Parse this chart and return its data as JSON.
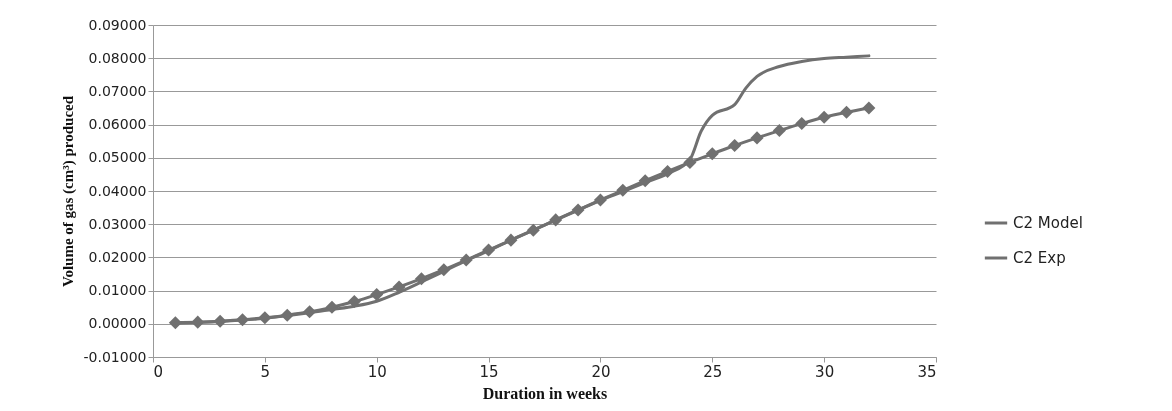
{
  "chart_data": {
    "type": "line",
    "xlabel": "Duration in weeks",
    "ylabel": "Volume of gas (cm³) produced",
    "xlim": [
      0,
      35
    ],
    "xticks": [
      0,
      5,
      10,
      15,
      20,
      25,
      30,
      35
    ],
    "ylim": [
      -0.01,
      0.09
    ],
    "yticks": [
      {
        "value": -0.01,
        "label": "-0.01000"
      },
      {
        "value": 0,
        "label": "0.00000"
      },
      {
        "value": 0.01,
        "label": "0.01000"
      },
      {
        "value": 0.02,
        "label": "0.02000"
      },
      {
        "value": 0.03,
        "label": "0.03000"
      },
      {
        "value": 0.04,
        "label": "0.04000"
      },
      {
        "value": 0.05,
        "label": "0.05000"
      },
      {
        "value": 0.06,
        "label": "0.06000"
      },
      {
        "value": 0.07,
        "label": "0.07000"
      },
      {
        "value": 0.08,
        "label": "0.08000"
      },
      {
        "value": 0.09,
        "label": "0.09000"
      }
    ],
    "grid": "y",
    "legend": "right",
    "series": [
      {
        "name": "C2 Model",
        "color": "#707070",
        "marker": "diamond",
        "x": [
          1,
          2,
          3,
          4,
          5,
          6,
          7,
          8,
          9,
          10,
          11,
          12,
          13,
          14,
          15,
          16,
          17,
          18,
          19,
          20,
          21,
          22,
          23,
          24,
          25,
          26,
          27,
          28,
          29,
          30,
          31,
          32
        ],
        "values": [
          0.0003,
          0.0005,
          0.0008,
          0.0012,
          0.0018,
          0.0026,
          0.0036,
          0.005,
          0.0067,
          0.0088,
          0.0111,
          0.0136,
          0.0163,
          0.0192,
          0.0222,
          0.0252,
          0.0282,
          0.0313,
          0.0343,
          0.0373,
          0.0402,
          0.0431,
          0.0459,
          0.0486,
          0.0512,
          0.0537,
          0.056,
          0.0582,
          0.0603,
          0.0622,
          0.0637,
          0.065
        ]
      },
      {
        "name": "C2 Exp",
        "color": "#707070",
        "marker": "none",
        "x": [
          1,
          3,
          5,
          7,
          8,
          9,
          10,
          11,
          12,
          13,
          14,
          15,
          16,
          17,
          18,
          19,
          20,
          21,
          22,
          23,
          24,
          24.5,
          25,
          26,
          26.5,
          27,
          28,
          29,
          30,
          31,
          32
        ],
        "values": [
          0.0002,
          0.0007,
          0.0017,
          0.0033,
          0.0043,
          0.0053,
          0.0068,
          0.0095,
          0.0126,
          0.0158,
          0.019,
          0.022,
          0.0252,
          0.0282,
          0.0312,
          0.0342,
          0.0372,
          0.0398,
          0.0425,
          0.0452,
          0.0495,
          0.058,
          0.0628,
          0.066,
          0.071,
          0.0745,
          0.0775,
          0.079,
          0.0799,
          0.0803,
          0.0807
        ]
      }
    ]
  }
}
